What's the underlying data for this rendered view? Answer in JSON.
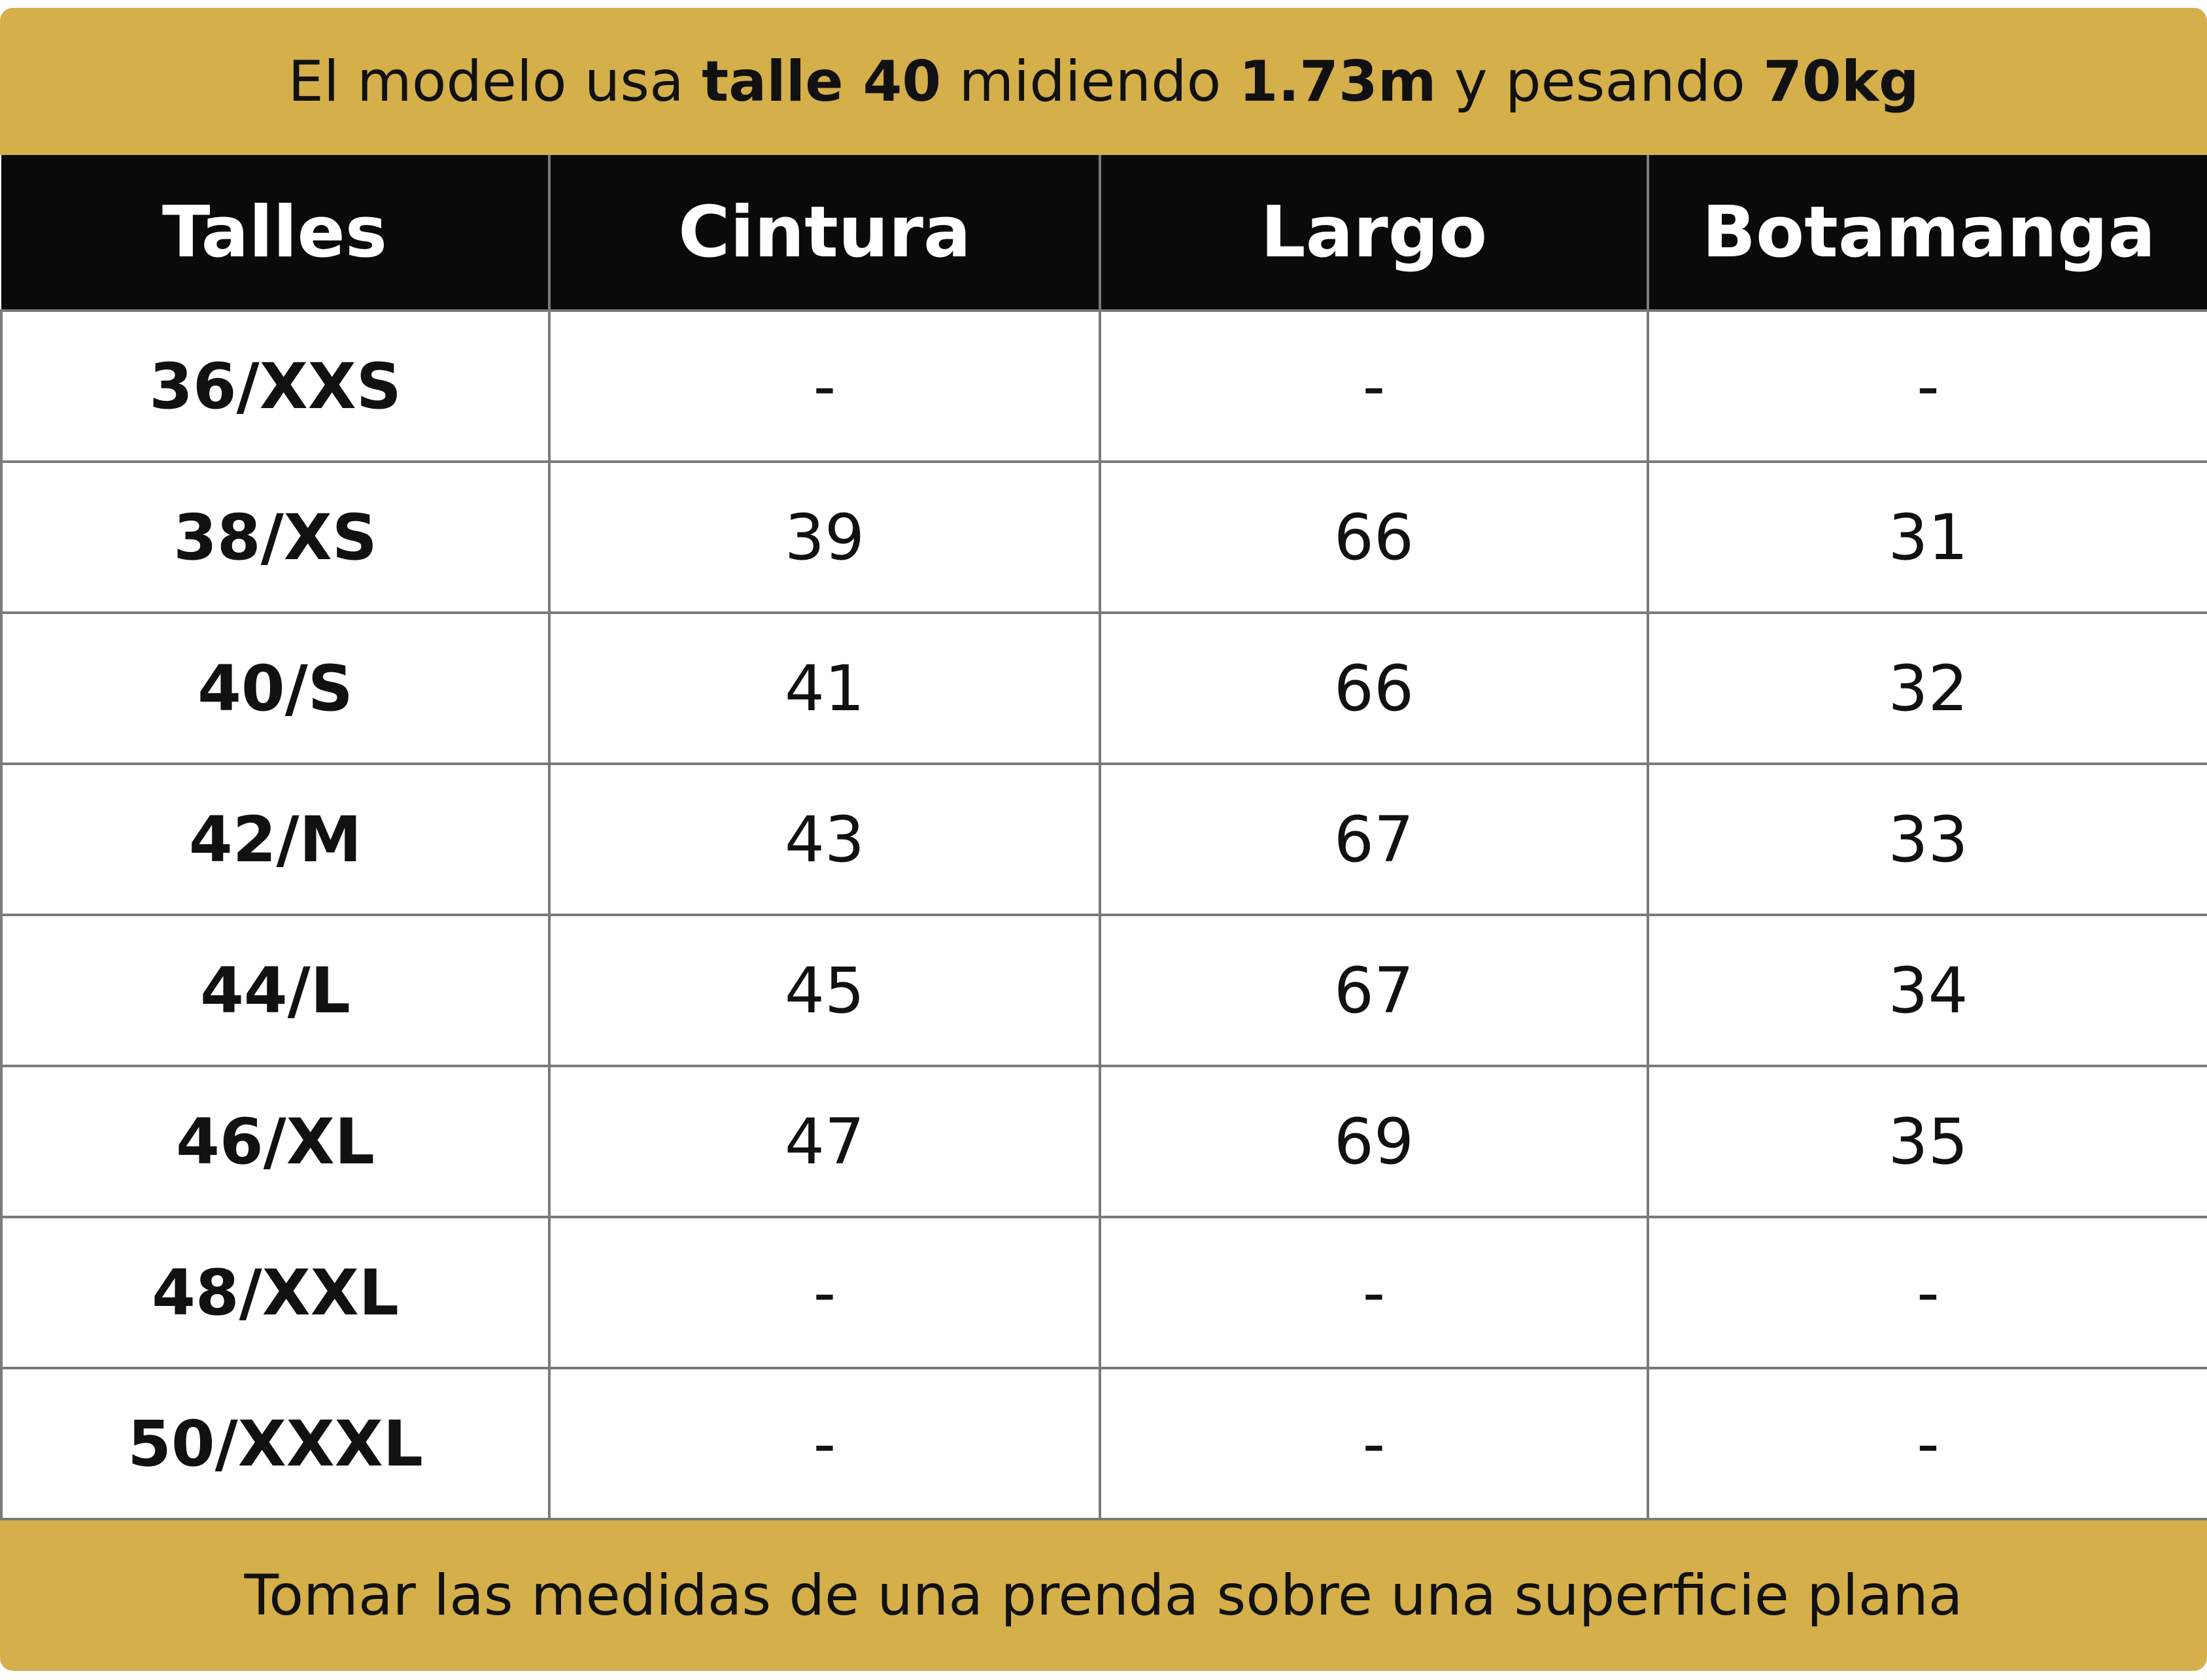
{
  "header": {
    "pre1": "El modelo usa ",
    "bold1": "talle 40",
    "pre2": " midiendo ",
    "bold2": "1.73m",
    "pre3": " y pesando ",
    "bold3": "70kg"
  },
  "table": {
    "columns": [
      "Talles",
      "Cintura",
      "Largo",
      "Botamanga"
    ],
    "rows": [
      [
        "36/XXS",
        "-",
        "-",
        "-"
      ],
      [
        "38/XS",
        "39",
        "66",
        "31"
      ],
      [
        "40/S",
        "41",
        "66",
        "32"
      ],
      [
        "42/M",
        "43",
        "67",
        "33"
      ],
      [
        "44/L",
        "45",
        "67",
        "34"
      ],
      [
        "46/XL",
        "47",
        "69",
        "35"
      ],
      [
        "48/XXL",
        "-",
        "-",
        "-"
      ],
      [
        "50/XXXL",
        "-",
        "-",
        "-"
      ]
    ]
  },
  "footer": {
    "text": "Tomar las medidas de una prenda sobre una superficie plana"
  },
  "colors": {
    "banner": "#d4af4a",
    "header_row": "#0a0a0a",
    "grid": "#7a7a7a"
  }
}
